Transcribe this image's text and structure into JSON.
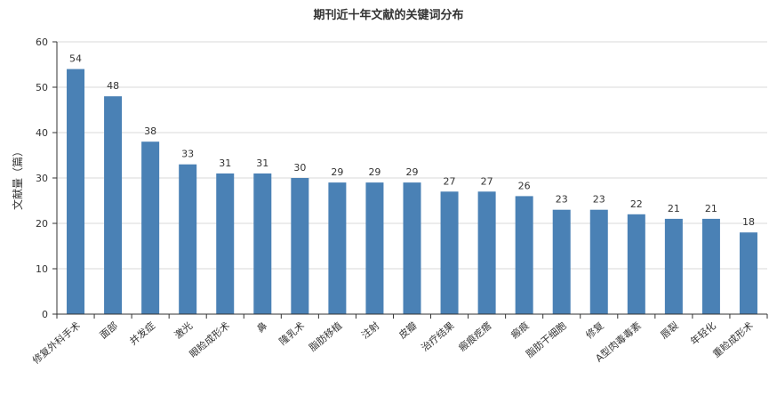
{
  "chart_data": {
    "type": "bar",
    "title": "期刊近十年文献的关键词分布",
    "xlabel": "",
    "ylabel": "文献量（篇）",
    "ylim": [
      0,
      60
    ],
    "yticks": [
      0,
      10,
      20,
      30,
      40,
      50,
      60
    ],
    "grid": true,
    "legend": "none",
    "bar_color": "#4a81b5",
    "categories": [
      "修复外科手术",
      "面部",
      "并发症",
      "激光",
      "眼睑成形术",
      "鼻",
      "隆乳术",
      "脂肪移植",
      "注射",
      "皮瓣",
      "治疗结果",
      "瘢痕疙瘩",
      "瘢痕",
      "脂肪干细胞",
      "修复",
      "A型肉毒毒素",
      "唇裂",
      "年轻化",
      "重睑成形术"
    ],
    "values": [
      54,
      48,
      38,
      33,
      31,
      31,
      30,
      29,
      29,
      29,
      27,
      27,
      26,
      23,
      23,
      22,
      21,
      21,
      18
    ]
  }
}
